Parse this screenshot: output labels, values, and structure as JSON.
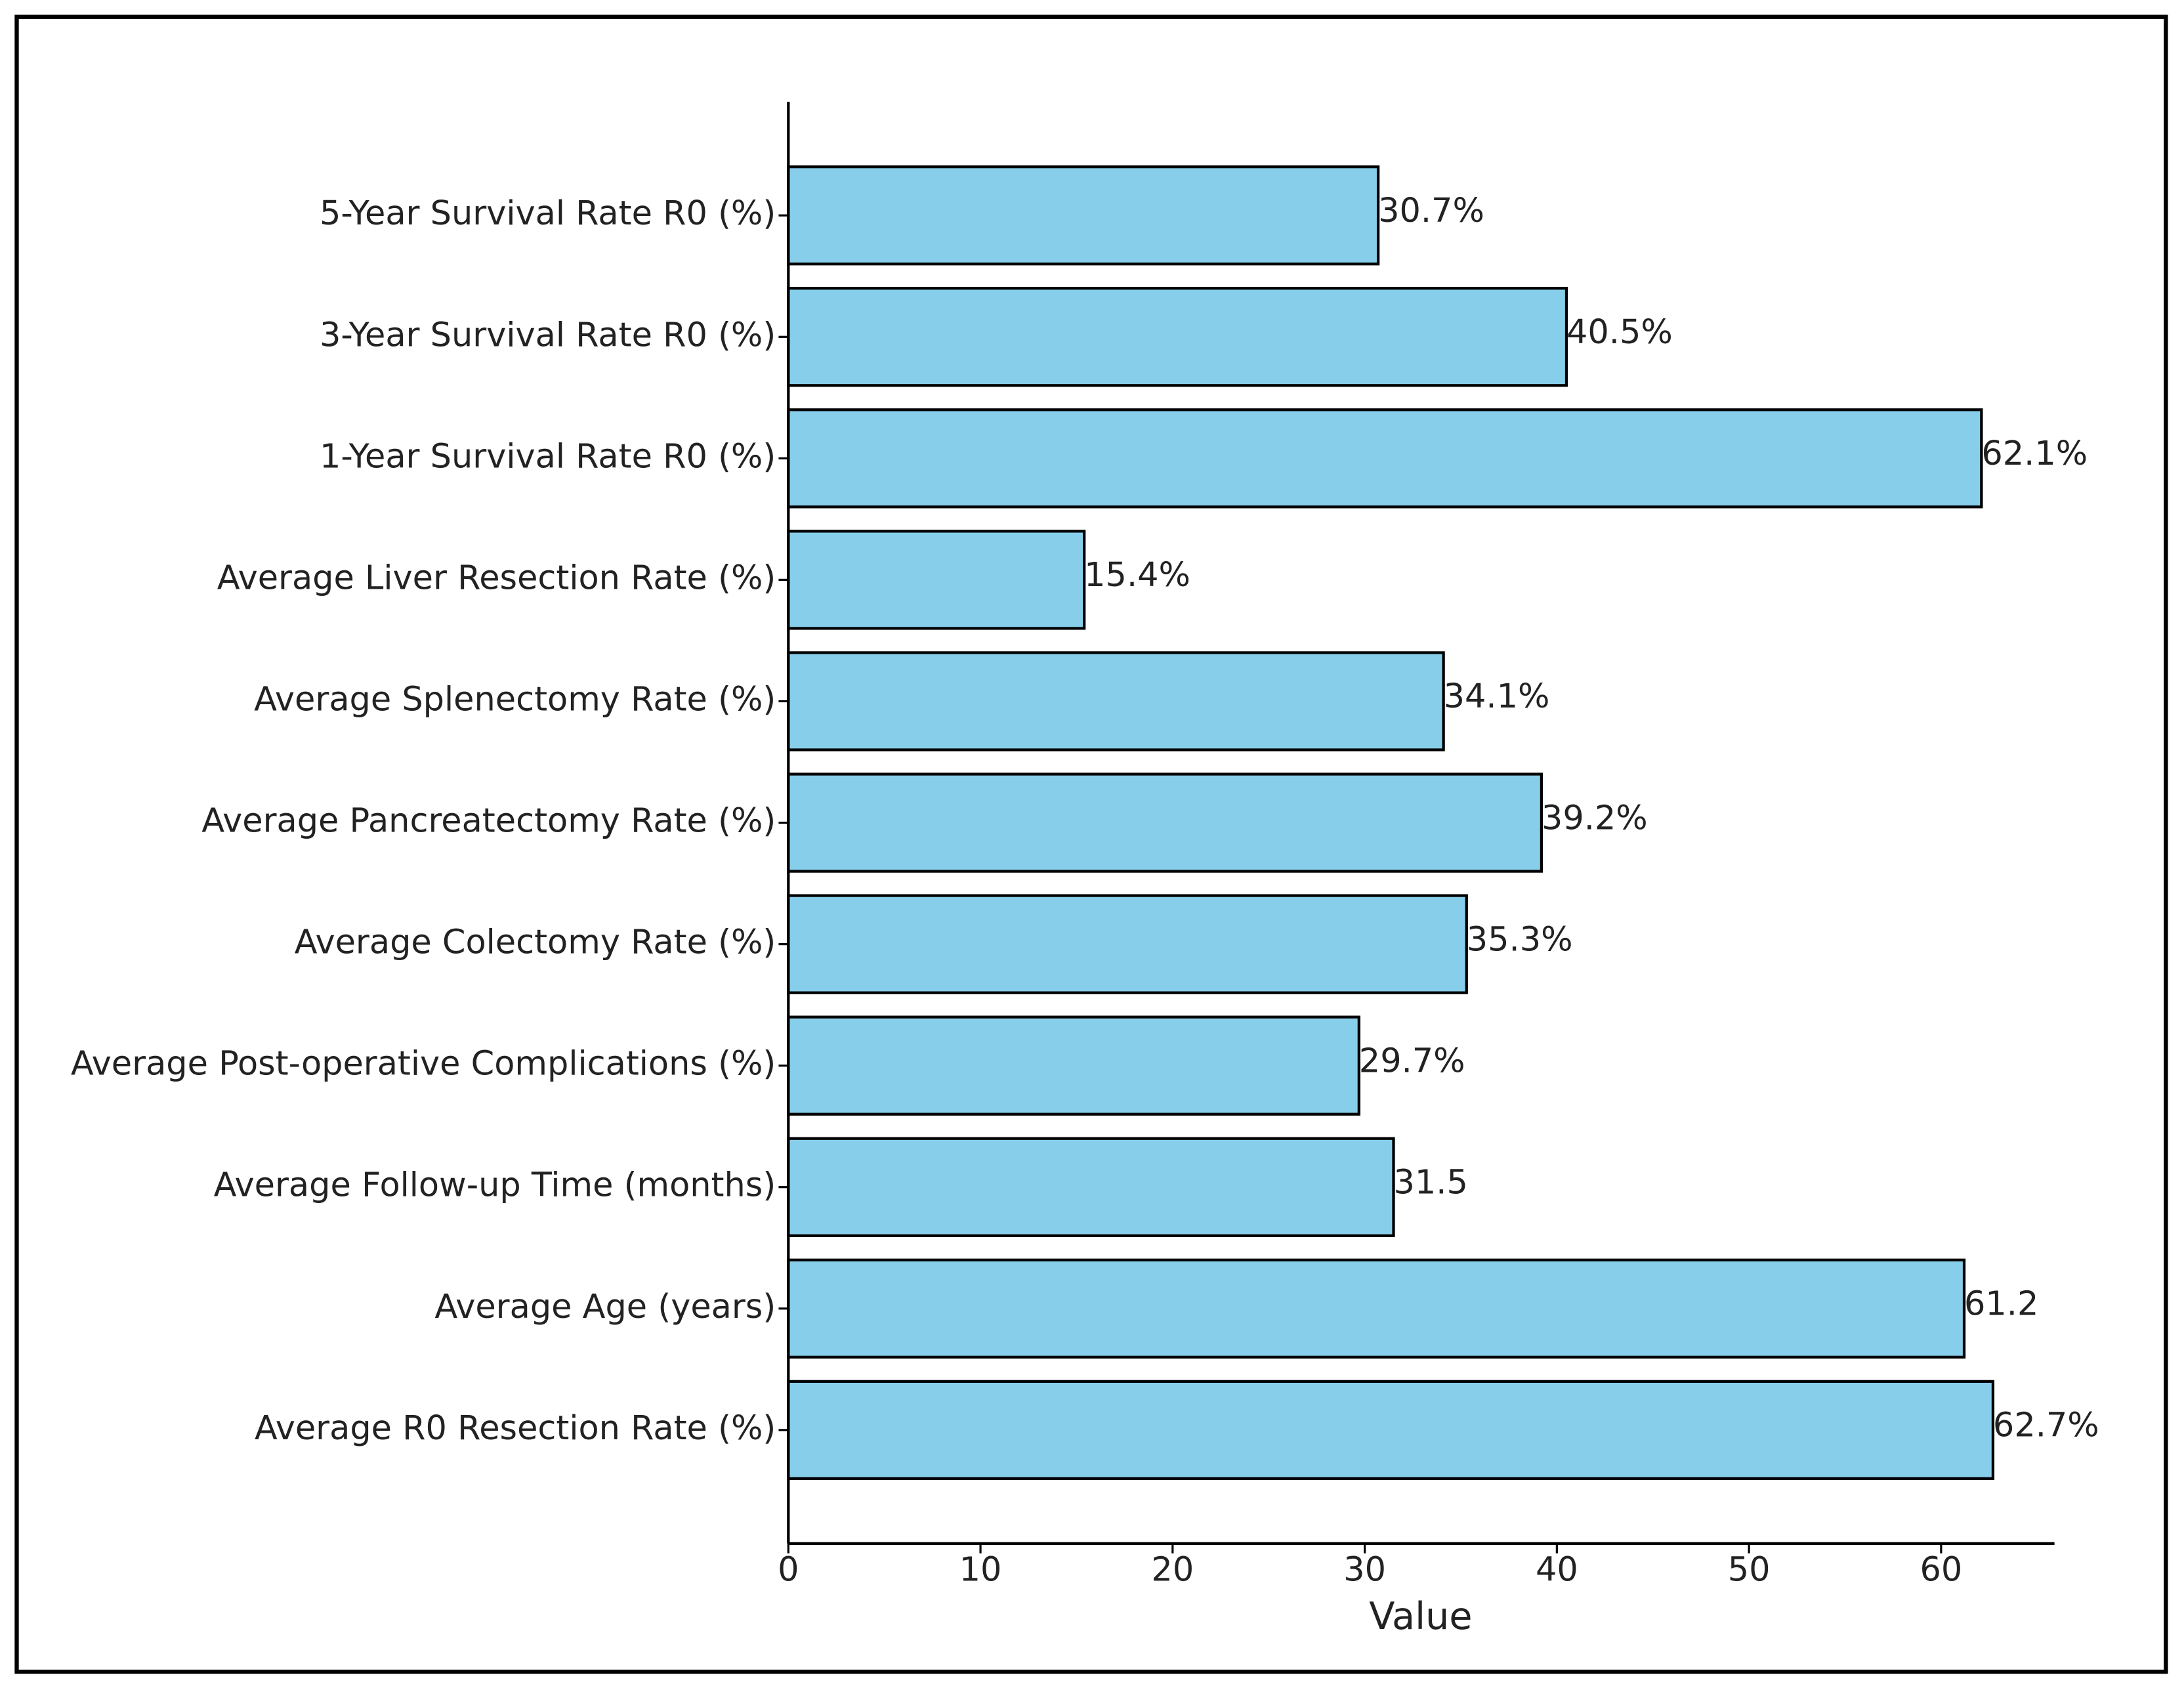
{
  "chart_data": {
    "type": "barh",
    "xlabel": "Value",
    "categories": [
      "5-Year Survival Rate R0 (%)",
      "3-Year Survival Rate R0 (%)",
      "1-Year Survival Rate R0 (%)",
      "Average Liver Resection Rate (%)",
      "Average Splenectomy Rate (%)",
      "Average Pancreatectomy Rate (%)",
      "Average Colectomy Rate (%)",
      "Average Post-operative Complications (%)",
      "Average Follow-up Time (months)",
      "Average Age (years)",
      "Average R0 Resection Rate (%)"
    ],
    "values": [
      30.7,
      40.5,
      62.1,
      15.4,
      34.1,
      39.2,
      35.3,
      29.7,
      31.5,
      61.2,
      62.7
    ],
    "value_labels": [
      "30.7%",
      "40.5%",
      "62.1%",
      "15.4%",
      "34.1%",
      "39.2%",
      "35.3%",
      "29.7%",
      "31.5",
      "61.2",
      "62.7%"
    ],
    "color": "#87ceeb",
    "xlim": [
      0,
      65.9
    ],
    "xticks": [
      0,
      10,
      20,
      30,
      40,
      50,
      60
    ]
  }
}
